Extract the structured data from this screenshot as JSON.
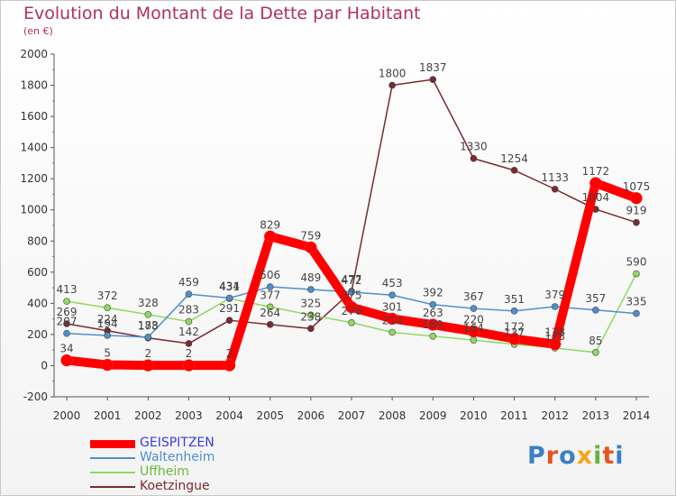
{
  "header": {
    "title": "Evolution du Montant de la Dette par Habitant",
    "subtitle": "(en €)"
  },
  "logo": {
    "letters": [
      "P",
      "r",
      "o",
      "x",
      "i",
      "t",
      "i"
    ],
    "colors": [
      "#3b7fc4",
      "#e8521e",
      "#3b7fc4",
      "#f2a71b",
      "#6ab23e",
      "#e8521e",
      "#3b7fc4"
    ]
  },
  "chart_data": {
    "type": "line",
    "title": "Evolution du Montant de la Dette par Habitant",
    "subtitle": "(en €)",
    "x": [
      "2000",
      "2001",
      "2002",
      "2003",
      "2004",
      "2005",
      "2006",
      "2007",
      "2008",
      "2009",
      "2010",
      "2011",
      "2012",
      "2013",
      "2014"
    ],
    "ylim": [
      -200,
      2000
    ],
    "yticks": [
      "-200",
      "0",
      "200",
      "400",
      "600",
      "800",
      "1000",
      "1200",
      "1400",
      "1600",
      "1800",
      "2000"
    ],
    "grid": false,
    "legend_position": "bottom-left",
    "series": [
      {
        "name": "GEISPITZEN",
        "color": "#ff0000",
        "values": [
          34,
          5,
          2,
          2,
          2,
          829,
          759,
          375,
          301,
          263,
          220,
          172,
          138,
          1172,
          1075
        ],
        "labels": [
          "34",
          "5",
          "2",
          "2",
          "2",
          "829",
          "759",
          "375",
          "301",
          "263",
          "220",
          "172",
          "138",
          "1172",
          "1075"
        ]
      },
      {
        "name": "Waltenheim",
        "color": "#4f8fcf",
        "values": [
          207,
          194,
          183,
          459,
          434,
          506,
          489,
          472,
          453,
          392,
          367,
          351,
          379,
          357,
          335
        ],
        "labels": [
          "207",
          "194",
          "183",
          "459",
          "434",
          "506",
          "489",
          "472",
          "453",
          "392",
          "367",
          "351",
          "379",
          "357",
          "335"
        ]
      },
      {
        "name": "Uffheim",
        "color": "#8ed95e",
        "values": [
          413,
          372,
          328,
          283,
          431,
          377,
          325,
          276,
          214,
          189,
          164,
          137,
          113,
          85,
          590
        ],
        "labels": [
          "413",
          "372",
          "328",
          "283",
          "431",
          "377",
          "325",
          "276",
          "214",
          "189",
          "164",
          "137",
          "113",
          "85",
          "590"
        ]
      },
      {
        "name": "Koetzingue",
        "color": "#7a2a30",
        "values": [
          269,
          224,
          178,
          142,
          291,
          264,
          238,
          477,
          1800,
          1837,
          1330,
          1254,
          1133,
          1004,
          919
        ],
        "labels": [
          "269",
          "224",
          "178",
          "142",
          "291",
          "264",
          "238",
          "477",
          "1800",
          "1837",
          "1330",
          "1254",
          "1133",
          "1004",
          "919"
        ]
      }
    ]
  }
}
